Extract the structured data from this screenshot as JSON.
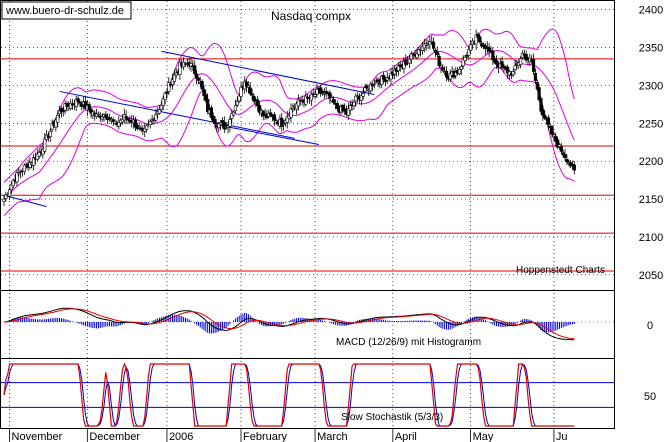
{
  "watermark": "www.buero-dr-schulz.de",
  "chart_data": {
    "type": "candlestick",
    "title": "Nasdaq compx",
    "source": "Hoppenstedt Charts",
    "price_axis": {
      "ticks": [
        "2400",
        "2350",
        "2300",
        "2250",
        "2200",
        "2150",
        "2100",
        "2050"
      ],
      "range": [
        2030,
        2410
      ]
    },
    "horizontal_levels": [
      2335,
      2220,
      2155,
      2105,
      2055
    ],
    "x_labels": [
      "November",
      "December",
      "2006",
      "February",
      "March",
      "April",
      "May",
      "Ju"
    ],
    "candles_anchor_close": [
      [
        0,
        2150
      ],
      [
        5,
        2175
      ],
      [
        10,
        2190
      ],
      [
        15,
        2200
      ],
      [
        20,
        2215
      ],
      [
        25,
        2240
      ],
      [
        30,
        2265
      ],
      [
        35,
        2275
      ],
      [
        40,
        2280
      ],
      [
        45,
        2270
      ],
      [
        50,
        2260
      ],
      [
        55,
        2262
      ],
      [
        60,
        2248
      ],
      [
        65,
        2258
      ],
      [
        70,
        2252
      ],
      [
        75,
        2235
      ],
      [
        80,
        2255
      ],
      [
        85,
        2275
      ],
      [
        90,
        2305
      ],
      [
        95,
        2325
      ],
      [
        100,
        2330
      ],
      [
        105,
        2310
      ],
      [
        110,
        2268
      ],
      [
        115,
        2250
      ],
      [
        120,
        2245
      ],
      [
        125,
        2275
      ],
      [
        130,
        2308
      ],
      [
        135,
        2283
      ],
      [
        140,
        2260
      ],
      [
        145,
        2258
      ],
      [
        150,
        2250
      ],
      [
        155,
        2268
      ],
      [
        160,
        2280
      ],
      [
        165,
        2283
      ],
      [
        170,
        2292
      ],
      [
        175,
        2285
      ],
      [
        180,
        2270
      ],
      [
        185,
        2263
      ],
      [
        190,
        2282
      ],
      [
        195,
        2292
      ],
      [
        200,
        2305
      ],
      [
        205,
        2308
      ],
      [
        210,
        2316
      ],
      [
        215,
        2326
      ],
      [
        220,
        2338
      ],
      [
        225,
        2350
      ],
      [
        230,
        2362
      ],
      [
        235,
        2330
      ],
      [
        240,
        2312
      ],
      [
        245,
        2318
      ],
      [
        250,
        2342
      ],
      [
        255,
        2362
      ],
      [
        260,
        2352
      ],
      [
        265,
        2332
      ],
      [
        270,
        2320
      ],
      [
        275,
        2316
      ],
      [
        280,
        2342
      ],
      [
        285,
        2330
      ],
      [
        290,
        2270
      ],
      [
        295,
        2240
      ],
      [
        300,
        2218
      ],
      [
        305,
        2200
      ],
      [
        308,
        2185
      ]
    ],
    "trendlines": [
      {
        "x": [
          0,
          23
        ],
        "y": [
          2155,
          2140
        ]
      },
      {
        "x": [
          30,
          157
        ],
        "y": [
          2292,
          2230
        ]
      },
      {
        "x": [
          85,
          200
        ],
        "y": [
          2345,
          2288
        ]
      },
      {
        "x": [
          115,
          170
        ],
        "y": [
          2248,
          2222
        ]
      }
    ],
    "indicators": [
      {
        "name": "MACD",
        "label": "MACD (12/26/9) mit Histogramm",
        "zero_tick": "0"
      },
      {
        "name": "Stochastik",
        "label": "Slow Stochastik (5/3/3)",
        "ticks": [
          "50"
        ],
        "bands": [
          70,
          30
        ]
      }
    ]
  }
}
